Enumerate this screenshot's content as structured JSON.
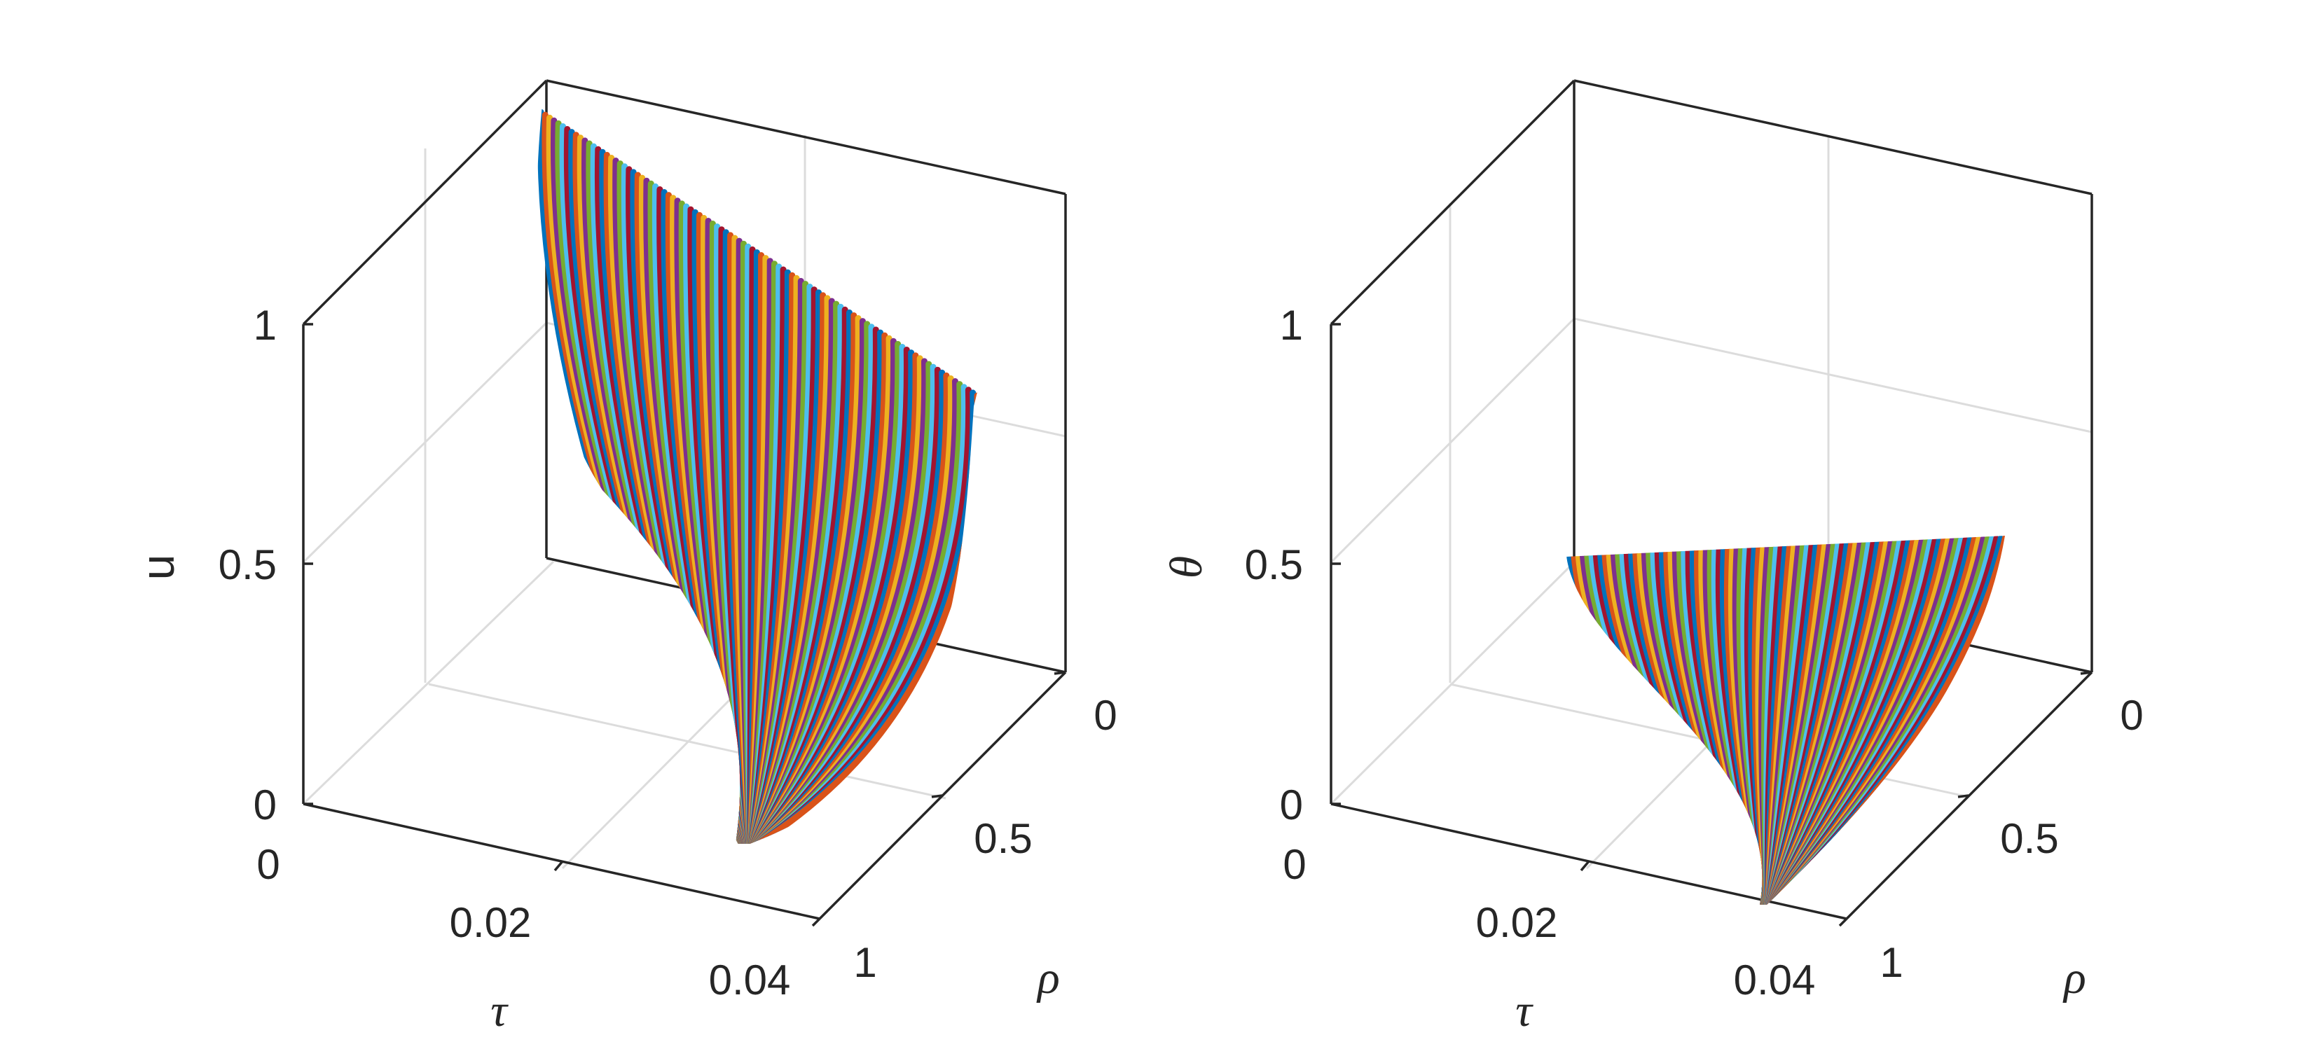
{
  "chart_data": [
    {
      "type": "surface3d",
      "zlabel": "u",
      "xlabel": "τ",
      "ylabel": "ρ",
      "x_ticks": [
        "0",
        "0.02",
        "0.04"
      ],
      "y_ticks": [
        "0",
        "0.5",
        "1"
      ],
      "z_ticks": [
        "0",
        "0.5",
        "1"
      ],
      "xlim": [
        0,
        0.04
      ],
      "ylim": [
        0,
        1
      ],
      "zlim": [
        0,
        1
      ],
      "grid": true,
      "num_curves": 100,
      "curve_colors": [
        "#0072BD",
        "#D95319",
        "#EDB120",
        "#7E2F8E",
        "#77AC30",
        "#4DBEEE",
        "#A2142F"
      ],
      "surface_outline": [
        {
          "tau": 0.0,
          "rho": 1.0,
          "u": 1.0
        },
        {
          "tau": 0.0,
          "rho": 0.0,
          "u": 1.0
        },
        {
          "tau": 0.04,
          "rho": 0.0,
          "u": 0.0
        },
        {
          "tau": 0.04,
          "rho": 1.0,
          "u": 0.0
        }
      ]
    },
    {
      "type": "surface3d",
      "zlabel": "θ",
      "xlabel": "τ",
      "ylabel": "ρ",
      "x_ticks": [
        "0",
        "0.02",
        "0.04"
      ],
      "y_ticks": [
        "0",
        "0.5",
        "1"
      ],
      "z_ticks": [
        "0",
        "0.5",
        "1"
      ],
      "xlim": [
        0,
        0.04
      ],
      "ylim": [
        0,
        1
      ],
      "zlim": [
        0,
        1
      ],
      "grid": true,
      "num_curves": 100,
      "curve_colors": [
        "#0072BD",
        "#D95319",
        "#EDB120",
        "#7E2F8E",
        "#77AC30",
        "#4DBEEE",
        "#A2142F"
      ],
      "surface_outline": [
        {
          "tau": 0.0,
          "rho": 1.0,
          "theta": 0.5
        },
        {
          "tau": 0.0,
          "rho": 0.0,
          "theta": 0.5
        },
        {
          "tau": 0.04,
          "rho": 0.0,
          "theta": 0.0
        },
        {
          "tau": 0.04,
          "rho": 1.0,
          "theta": 0.0
        }
      ]
    }
  ]
}
